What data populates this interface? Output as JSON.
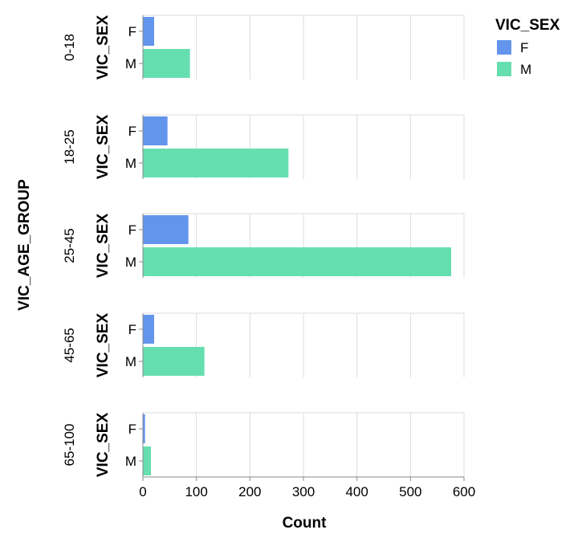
{
  "chart_data": {
    "type": "bar",
    "orientation": "horizontal",
    "facet_field": "VIC_AGE_GROUP",
    "row_field": "VIC_SEX",
    "xlabel": "Count",
    "xlim": [
      0,
      600
    ],
    "x_ticks": [
      0,
      100,
      200,
      300,
      400,
      500,
      600
    ],
    "grid": true,
    "legend": {
      "title": "VIC_SEX",
      "position": "top-right",
      "entries": [
        {
          "label": "F",
          "color": "#6495ed"
        },
        {
          "label": "M",
          "color": "#66dfb0"
        }
      ]
    },
    "categories": [
      "F",
      "M"
    ],
    "facets": [
      {
        "group": "0-18",
        "values": [
          21,
          88
        ]
      },
      {
        "group": "18-25",
        "values": [
          46,
          272
        ]
      },
      {
        "group": "25-45",
        "values": [
          85,
          576
        ]
      },
      {
        "group": "45-65",
        "values": [
          21,
          115
        ]
      },
      {
        "group": "65-100",
        "values": [
          4,
          15
        ]
      }
    ]
  }
}
